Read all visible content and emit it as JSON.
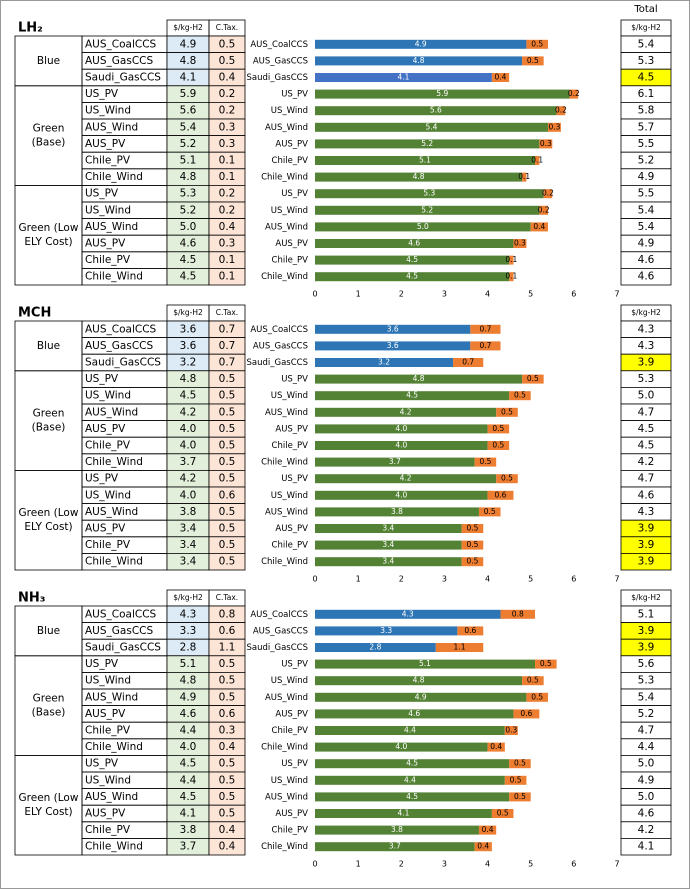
{
  "total_title": "Total",
  "chart_data": [
    {
      "type": "bar",
      "orientation": "horizontal",
      "stacked": true,
      "title": "LH₂",
      "groups": [
        {
          "label": [
            "Blue"
          ],
          "categories": [
            "AUS_CoalCCS",
            "AUS_GasCCS",
            "Saudi_GasCCS"
          ]
        },
        {
          "label": [
            "Green",
            "(Base)"
          ],
          "categories": [
            "US_PV",
            "US_Wind",
            "AUS_Wind",
            "AUS_PV",
            "Chile_PV",
            "Chile_Wind"
          ]
        },
        {
          "label": [
            "Green (Low",
            "ELY Cost)"
          ],
          "categories": [
            "US_PV",
            "US_Wind",
            "AUS_Wind",
            "AUS_PV",
            "Chile_PV",
            "Chile_Wind"
          ]
        }
      ],
      "series": [
        {
          "name": "$/kg-H2",
          "colors": [
            "#2e75b6",
            "#2e75b6",
            "#4472c4",
            "#548235",
            "#548235",
            "#548235",
            "#548235",
            "#548235",
            "#548235",
            "#548235",
            "#548235",
            "#548235",
            "#548235",
            "#548235",
            "#548235"
          ],
          "values": [
            4.9,
            4.8,
            4.1,
            5.9,
            5.6,
            5.4,
            5.2,
            5.1,
            4.8,
            5.3,
            5.2,
            5.0,
            4.6,
            4.5,
            4.5
          ],
          "value_labels": [
            "4.9",
            "4.8",
            "4.1",
            "5.9",
            "5.6",
            "5.4",
            "5.2",
            "5.1",
            "4.8",
            "5.3",
            "5.2",
            "5.0",
            "4.6",
            "4.5",
            "4.5"
          ]
        },
        {
          "name": "C.Tax.",
          "color": "#ed7d31",
          "values": [
            0.5,
            0.5,
            0.4,
            0.2,
            0.2,
            0.3,
            0.3,
            0.1,
            0.1,
            0.2,
            0.2,
            0.4,
            0.3,
            0.1,
            0.1
          ],
          "value_labels": [
            "0.5",
            "0.5",
            "0.4",
            "0.2",
            "0.2",
            "0.3",
            "0.3",
            "0.1",
            "0.1",
            "0.2",
            "0.2",
            "0.4",
            "0.3",
            "0.1",
            "0.1"
          ]
        }
      ],
      "totals_header": "$/kg-H2",
      "totals": [
        "5.4",
        "5.3",
        "4.5",
        "6.1",
        "5.8",
        "5.7",
        "5.5",
        "5.2",
        "4.9",
        "5.5",
        "5.4",
        "5.4",
        "4.9",
        "4.6",
        "4.6"
      ],
      "totals_colors": [
        "#ffffff",
        "#ffffff",
        "#ffff00",
        "#ffffff",
        "#ffffff",
        "#ffffff",
        "#ffffff",
        "#ffffff",
        "#ffffff",
        "#ffffff",
        "#ffffff",
        "#ffffff",
        "#ffffff",
        "#ffffff",
        "#ffffff"
      ],
      "xlim": [
        0,
        7
      ],
      "xticks": [
        0,
        1,
        2,
        3,
        4,
        5,
        6,
        7
      ]
    },
    {
      "type": "bar",
      "orientation": "horizontal",
      "stacked": true,
      "title": "MCH",
      "groups": [
        {
          "label": [
            "Blue"
          ],
          "categories": [
            "AUS_CoalCCS",
            "AUS_GasCCS",
            "Saudi_GasCCS"
          ]
        },
        {
          "label": [
            "Green",
            "(Base)"
          ],
          "categories": [
            "US_PV",
            "US_Wind",
            "AUS_Wind",
            "AUS_PV",
            "Chile_PV",
            "Chile_Wind"
          ]
        },
        {
          "label": [
            "Green (Low",
            "ELY Cost)"
          ],
          "categories": [
            "US_PV",
            "US_Wind",
            "AUS_Wind",
            "AUS_PV",
            "Chile_PV",
            "Chile_Wind"
          ]
        }
      ],
      "series": [
        {
          "name": "$/kg-H2",
          "colors": [
            "#2e75b6",
            "#2e75b6",
            "#2e75b6",
            "#548235",
            "#548235",
            "#548235",
            "#548235",
            "#548235",
            "#548235",
            "#548235",
            "#548235",
            "#548235",
            "#548235",
            "#548235",
            "#548235"
          ],
          "values": [
            3.6,
            3.6,
            3.2,
            4.8,
            4.5,
            4.2,
            4.0,
            4.0,
            3.7,
            4.2,
            4.0,
            3.8,
            3.4,
            3.4,
            3.4
          ],
          "value_labels": [
            "3.6",
            "3.6",
            "3.2",
            "4.8",
            "4.5",
            "4.2",
            "4.0",
            "4.0",
            "3.7",
            "4.2",
            "4.0",
            "3.8",
            "3.4",
            "3.4",
            "3.4"
          ]
        },
        {
          "name": "C.Tax.",
          "color": "#ed7d31",
          "values": [
            0.7,
            0.7,
            0.7,
            0.5,
            0.5,
            0.5,
            0.5,
            0.5,
            0.5,
            0.5,
            0.6,
            0.5,
            0.5,
            0.5,
            0.5
          ],
          "value_labels": [
            "0.7",
            "0.7",
            "0.7",
            "0.5",
            "0.5",
            "0.5",
            "0.5",
            "0.5",
            "0.5",
            "0.5",
            "0.6",
            "0.5",
            "0.5",
            "0.5",
            "0.5"
          ]
        }
      ],
      "totals_header": "$/kg-H2",
      "totals": [
        "4.3",
        "4.3",
        "3.9",
        "5.3",
        "5.0",
        "4.7",
        "4.5",
        "4.5",
        "4.2",
        "4.7",
        "4.6",
        "4.3",
        "3.9",
        "3.9",
        "3.9"
      ],
      "totals_colors": [
        "#ffffff",
        "#ffffff",
        "#ffff00",
        "#ffffff",
        "#ffffff",
        "#ffffff",
        "#ffffff",
        "#ffffff",
        "#ffffff",
        "#ffffff",
        "#ffffff",
        "#ffffff",
        "#ffff00",
        "#ffff00",
        "#ffff00"
      ],
      "xlim": [
        0,
        7
      ],
      "xticks": [
        0,
        1,
        2,
        3,
        4,
        5,
        6,
        7
      ]
    },
    {
      "type": "bar",
      "orientation": "horizontal",
      "stacked": true,
      "title": "NH₃",
      "groups": [
        {
          "label": [
            "Blue"
          ],
          "categories": [
            "AUS_CoalCCS",
            "AUS_GasCCS",
            "Saudi_GasCCS"
          ]
        },
        {
          "label": [
            "Green",
            "(Base)"
          ],
          "categories": [
            "US_PV",
            "US_Wind",
            "AUS_Wind",
            "AUS_PV",
            "Chile_PV",
            "Chile_Wind"
          ]
        },
        {
          "label": [
            "Green (Low",
            "ELY Cost)"
          ],
          "categories": [
            "US_PV",
            "US_Wind",
            "AUS_Wind",
            "AUS_PV",
            "Chile_PV",
            "Chile_Wind"
          ]
        }
      ],
      "series": [
        {
          "name": "$/kg-H2",
          "colors": [
            "#2e75b6",
            "#2e75b6",
            "#2e75b6",
            "#548235",
            "#548235",
            "#548235",
            "#548235",
            "#548235",
            "#548235",
            "#548235",
            "#548235",
            "#548235",
            "#548235",
            "#548235",
            "#548235"
          ],
          "values": [
            4.3,
            3.3,
            2.8,
            5.1,
            4.8,
            4.9,
            4.6,
            4.4,
            4.0,
            4.5,
            4.4,
            4.5,
            4.1,
            3.8,
            3.7
          ],
          "value_labels": [
            "4.3",
            "3.3",
            "2.8",
            "5.1",
            "4.8",
            "4.9",
            "4.6",
            "4.4",
            "4.0",
            "4.5",
            "4.4",
            "4.5",
            "4.1",
            "3.8",
            "3.7"
          ]
        },
        {
          "name": "C.Tax.",
          "color": "#ed7d31",
          "values": [
            0.8,
            0.6,
            1.1,
            0.5,
            0.5,
            0.5,
            0.6,
            0.3,
            0.4,
            0.5,
            0.5,
            0.5,
            0.5,
            0.4,
            0.4
          ],
          "value_labels": [
            "0.8",
            "0.6",
            "1.1",
            "0.5",
            "0.5",
            "0.5",
            "0.6",
            "0.3",
            "0.4",
            "0.5",
            "0.5",
            "0.5",
            "0.5",
            "0.4",
            "0.4"
          ]
        }
      ],
      "totals_header": "$/kg-H2",
      "totals": [
        "5.1",
        "3.9",
        "3.9",
        "5.6",
        "5.3",
        "5.4",
        "5.2",
        "4.7",
        "4.4",
        "5.0",
        "4.9",
        "5.0",
        "4.6",
        "4.2",
        "4.1"
      ],
      "totals_colors": [
        "#ffffff",
        "#ffff00",
        "#ffff00",
        "#ffffff",
        "#ffffff",
        "#ffffff",
        "#ffffff",
        "#ffffff",
        "#ffffff",
        "#ffffff",
        "#ffffff",
        "#ffffff",
        "#ffffff",
        "#ffffff",
        "#ffffff"
      ],
      "xlim": [
        0,
        7
      ],
      "xticks": [
        0,
        1,
        2,
        3,
        4,
        5,
        6,
        7
      ]
    }
  ]
}
